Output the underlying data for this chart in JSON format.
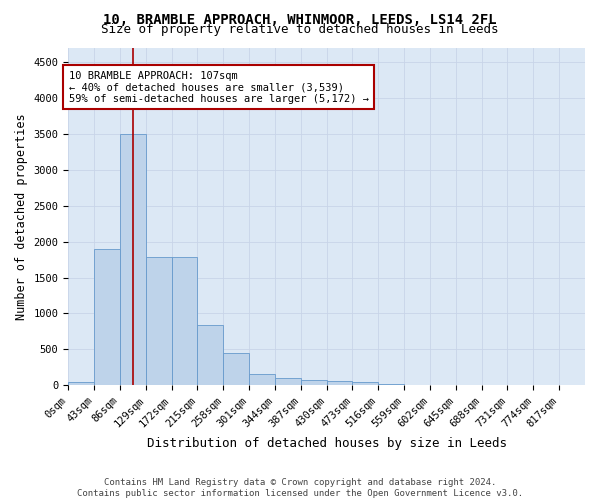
{
  "title_line1": "10, BRAMBLE APPROACH, WHINMOOR, LEEDS, LS14 2FL",
  "title_line2": "Size of property relative to detached houses in Leeds",
  "xlabel": "Distribution of detached houses by size in Leeds",
  "ylabel": "Number of detached properties",
  "bar_color": "#bed3ea",
  "bar_edge_color": "#6699cc",
  "grid_color": "#c8d4e8",
  "background_color": "#dce8f5",
  "bin_edges": [
    0,
    43,
    86,
    129,
    172,
    215,
    258,
    301,
    344,
    387,
    430,
    473,
    516,
    559,
    602,
    645,
    688,
    731,
    774,
    817,
    860
  ],
  "bar_heights": [
    45,
    1900,
    3500,
    1780,
    1780,
    840,
    450,
    155,
    100,
    70,
    55,
    40,
    15,
    10,
    5,
    5,
    0,
    0,
    0,
    0
  ],
  "property_size": 107,
  "annotation_title": "10 BRAMBLE APPROACH: 107sqm",
  "annotation_line1": "← 40% of detached houses are smaller (3,539)",
  "annotation_line2": "59% of semi-detached houses are larger (5,172) →",
  "vline_color": "#aa0000",
  "annotation_box_edgecolor": "#aa0000",
  "footer_line1": "Contains HM Land Registry data © Crown copyright and database right 2024.",
  "footer_line2": "Contains public sector information licensed under the Open Government Licence v3.0.",
  "ylim": [
    0,
    4700
  ],
  "yticks": [
    0,
    500,
    1000,
    1500,
    2000,
    2500,
    3000,
    3500,
    4000,
    4500
  ],
  "title_fontsize": 10,
  "subtitle_fontsize": 9,
  "axis_label_fontsize": 8.5,
  "tick_fontsize": 7.5,
  "annotation_fontsize": 7.5,
  "footer_fontsize": 6.5
}
